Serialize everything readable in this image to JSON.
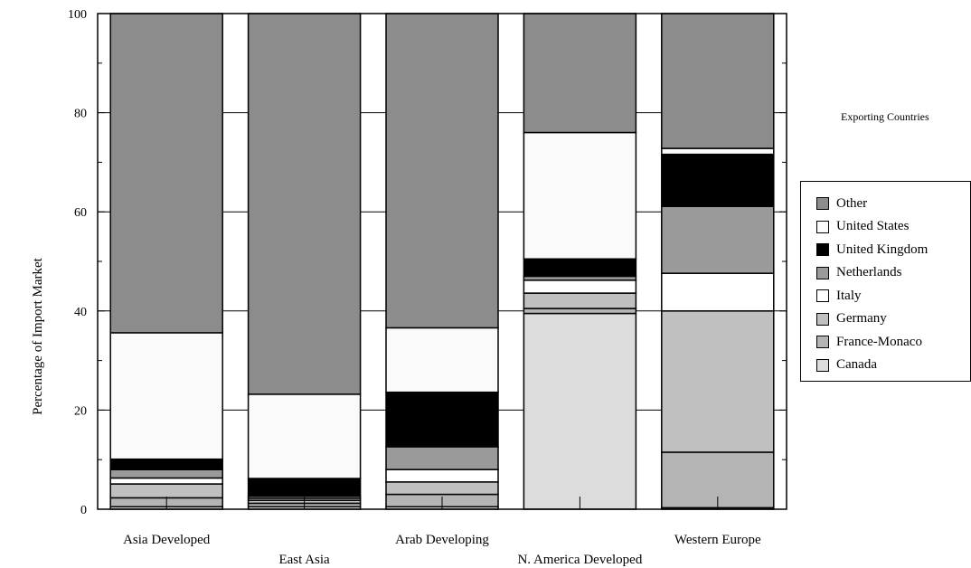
{
  "chart_data": {
    "type": "bar",
    "stacked": true,
    "ylabel": "Percentage of Import Market",
    "xlabel": "",
    "ylim": [
      0,
      100
    ],
    "yticks": [
      0,
      20,
      40,
      60,
      80,
      100
    ],
    "grid": true,
    "legend_title": "Exporting Countries",
    "legend_placement": "right",
    "categories": [
      "Asia Developed",
      "East Asia",
      "Arab Developing",
      "N. America Developed",
      "Western Europe"
    ],
    "series": [
      {
        "name": "Canada",
        "color": "#dcdcdc",
        "values": [
          0.5,
          0.5,
          0.5,
          39.5,
          0.3
        ]
      },
      {
        "name": "France-Monaco",
        "color": "#b4b4b4",
        "values": [
          1.8,
          0.7,
          2.5,
          1.0,
          11.2
        ]
      },
      {
        "name": "Germany",
        "color": "#c0c0c0",
        "values": [
          2.8,
          0.6,
          2.5,
          3.1,
          28.5
        ]
      },
      {
        "name": "Italy",
        "color": "#ffffff",
        "values": [
          1.2,
          0.4,
          2.5,
          2.6,
          7.6
        ]
      },
      {
        "name": "Netherlands",
        "color": "#9a9a9a",
        "values": [
          1.7,
          0.4,
          4.6,
          0.8,
          13.5
        ]
      },
      {
        "name": "United Kingdom",
        "color": "#000000",
        "values": [
          2.1,
          3.6,
          11.0,
          3.5,
          10.5
        ]
      },
      {
        "name": "United States",
        "color": "#fafafa",
        "values": [
          25.5,
          17.0,
          13.0,
          25.5,
          1.2
        ]
      },
      {
        "name": "Other",
        "color": "#8c8c8c",
        "values": [
          64.4,
          76.8,
          63.4,
          24.0,
          27.2
        ]
      }
    ],
    "legend_order": [
      "Other",
      "United States",
      "United Kingdom",
      "Netherlands",
      "Italy",
      "Germany",
      "France-Monaco",
      "Canada"
    ]
  }
}
